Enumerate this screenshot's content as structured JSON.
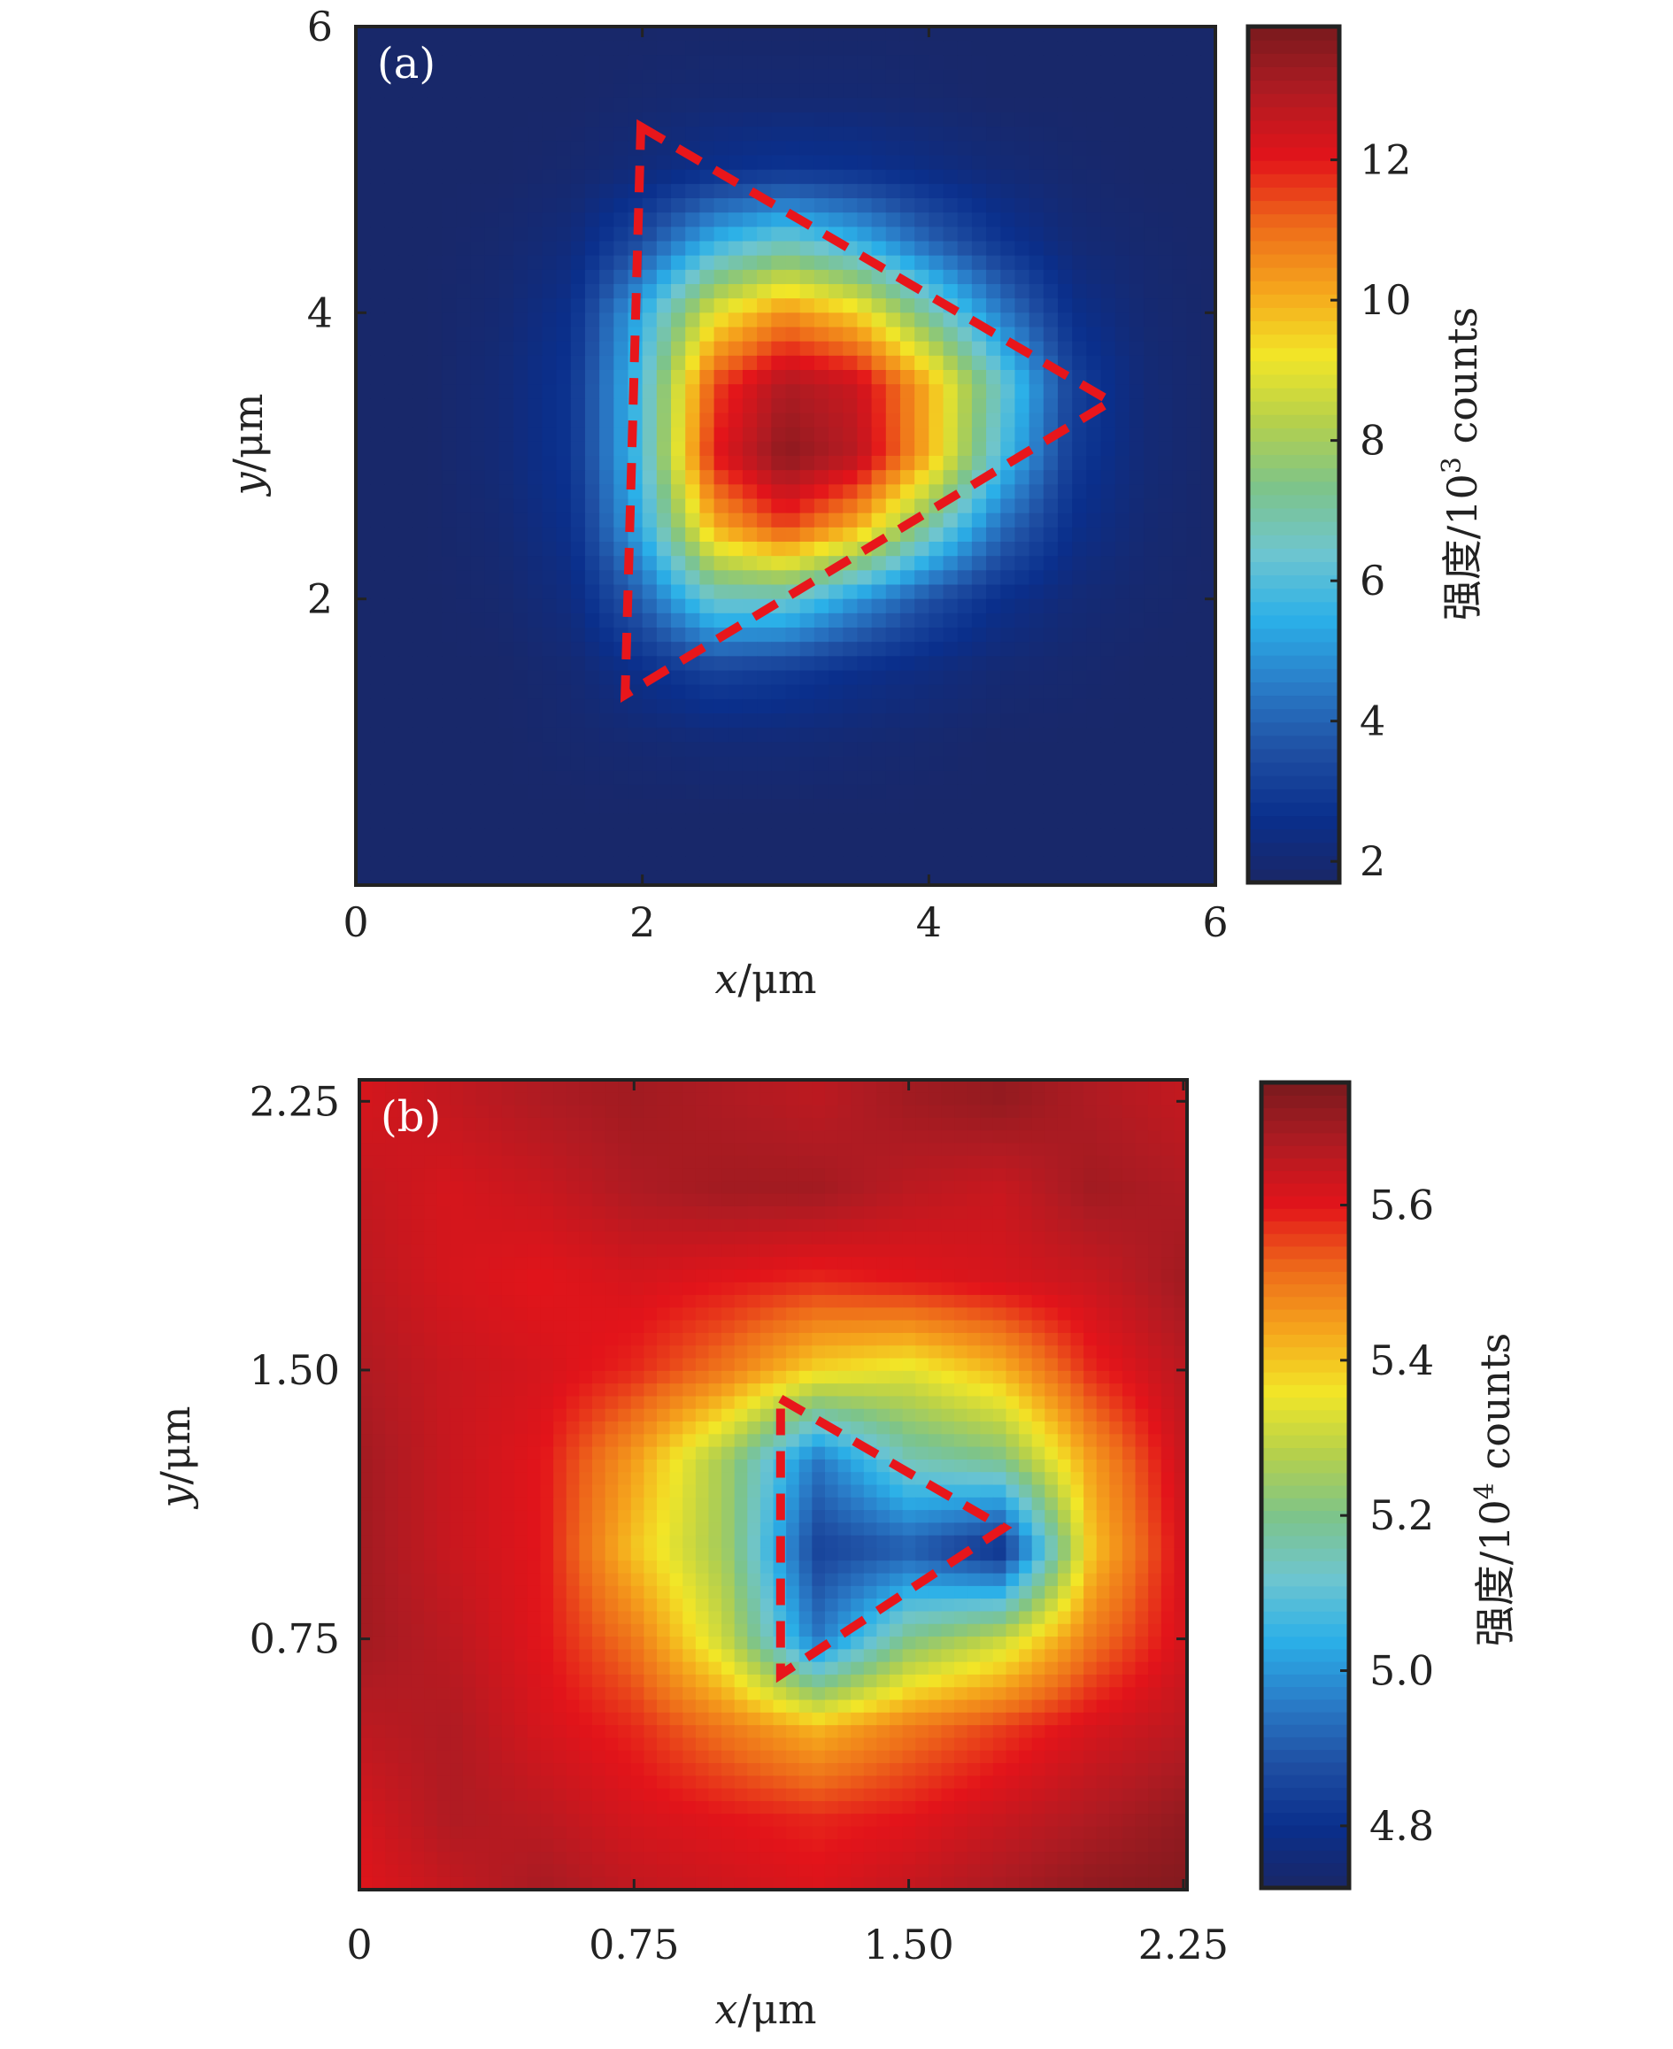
{
  "colormap": [
    "#1a2766",
    "#0a2f8c",
    "#1f4fa3",
    "#2a7cc8",
    "#2bb0e8",
    "#6ec5cf",
    "#7dc48a",
    "#b5d04c",
    "#f2e627",
    "#f5a51c",
    "#ee6a1a",
    "#e3141a",
    "#b01b22",
    "#7a1a1e"
  ],
  "dash_color": "#e8161b",
  "chart_data": [
    {
      "type": "heatmap",
      "panel_label": "(a)",
      "xlabel_var": "x",
      "xlabel_unit": "/μm",
      "ylabel_var": "y",
      "ylabel_unit": "/μm",
      "xlim": [
        0,
        6
      ],
      "ylim": [
        0,
        6
      ],
      "xticks": [
        {
          "v": 0,
          "label": "0"
        },
        {
          "v": 2,
          "label": "2"
        },
        {
          "v": 4,
          "label": "4"
        },
        {
          "v": 6,
          "label": "6"
        }
      ],
      "yticks": [
        {
          "v": 2,
          "label": "2"
        },
        {
          "v": 4,
          "label": "4"
        },
        {
          "v": 6,
          "label": "6"
        }
      ],
      "colorbar": {
        "label_prefix": "强度/10",
        "exponent": "3",
        "label_suffix": " counts",
        "range": [
          1.7,
          13.9
        ],
        "ticks": [
          {
            "v": 2,
            "label": "2"
          },
          {
            "v": 4,
            "label": "4"
          },
          {
            "v": 6,
            "label": "6"
          },
          {
            "v": 8,
            "label": "8"
          },
          {
            "v": 10,
            "label": "10"
          },
          {
            "v": 12,
            "label": "12"
          }
        ]
      },
      "grid_x": [
        0,
        0.5,
        1,
        1.5,
        2,
        2.5,
        3,
        3.5,
        4,
        4.5,
        5,
        5.5,
        6
      ],
      "grid_y_top_to_bottom": [
        6,
        5.5,
        5,
        4.5,
        4,
        3.5,
        3,
        2.5,
        2,
        1.5,
        1,
        0.5,
        0
      ],
      "values": [
        [
          1.8,
          1.8,
          1.8,
          1.8,
          1.8,
          1.8,
          1.8,
          1.8,
          1.8,
          1.8,
          1.8,
          1.8,
          1.8
        ],
        [
          1.8,
          1.8,
          1.8,
          1.8,
          1.9,
          2.0,
          2.0,
          2.0,
          1.9,
          1.8,
          1.8,
          1.8,
          1.8
        ],
        [
          1.8,
          1.8,
          1.8,
          1.9,
          2.2,
          2.6,
          2.8,
          2.7,
          2.4,
          2.1,
          1.9,
          1.8,
          1.8
        ],
        [
          1.8,
          1.8,
          1.9,
          2.2,
          3.5,
          5.5,
          6.5,
          5.5,
          4.0,
          2.8,
          2.1,
          1.9,
          1.8
        ],
        [
          1.8,
          1.8,
          2.0,
          2.6,
          5.5,
          9.0,
          10.5,
          9.5,
          7.0,
          4.5,
          2.6,
          2.0,
          1.8
        ],
        [
          1.8,
          1.8,
          2.1,
          2.8,
          6.0,
          11.5,
          13.0,
          12.5,
          10.0,
          6.5,
          3.2,
          2.1,
          1.8
        ],
        [
          1.8,
          1.8,
          2.1,
          2.8,
          6.0,
          12.0,
          13.6,
          12.8,
          10.0,
          6.0,
          3.0,
          2.1,
          1.8
        ],
        [
          1.8,
          1.8,
          2.0,
          2.6,
          5.5,
          10.0,
          11.5,
          10.0,
          7.0,
          4.2,
          2.6,
          2.0,
          1.8
        ],
        [
          1.8,
          1.8,
          1.9,
          2.3,
          4.0,
          6.5,
          6.5,
          5.0,
          3.6,
          2.6,
          2.1,
          1.9,
          1.8
        ],
        [
          1.8,
          1.8,
          1.8,
          2.0,
          2.6,
          3.2,
          3.0,
          2.6,
          2.3,
          2.0,
          1.9,
          1.8,
          1.8
        ],
        [
          1.8,
          1.8,
          1.8,
          1.9,
          2.0,
          2.1,
          2.1,
          2.0,
          1.9,
          1.8,
          1.8,
          1.8,
          1.8
        ],
        [
          1.8,
          1.8,
          1.8,
          1.8,
          1.8,
          1.8,
          1.8,
          1.8,
          1.8,
          1.8,
          1.8,
          1.8,
          1.8
        ],
        [
          1.8,
          1.8,
          1.8,
          1.8,
          1.8,
          1.8,
          1.8,
          1.8,
          1.8,
          1.8,
          1.8,
          1.8,
          1.8
        ]
      ],
      "triangle": [
        [
          1.99,
          5.3
        ],
        [
          5.27,
          3.38
        ],
        [
          1.88,
          1.33
        ]
      ]
    },
    {
      "type": "heatmap",
      "panel_label": "(b)",
      "xlabel_var": "x",
      "xlabel_unit": "/μm",
      "ylabel_var": "y",
      "ylabel_unit": "/μm",
      "xlim": [
        0,
        2.26
      ],
      "ylim": [
        0.05,
        2.31
      ],
      "xticks": [
        {
          "v": 0,
          "label": "0"
        },
        {
          "v": 0.75,
          "label": "0.75"
        },
        {
          "v": 1.5,
          "label": "1.50"
        },
        {
          "v": 2.25,
          "label": "2.25"
        }
      ],
      "yticks": [
        {
          "v": 0.75,
          "label": "0.75"
        },
        {
          "v": 1.5,
          "label": "1.50"
        },
        {
          "v": 2.25,
          "label": "2.25"
        }
      ],
      "colorbar": {
        "label_prefix": "强度/10",
        "exponent": "4",
        "label_suffix": " counts",
        "range": [
          4.72,
          5.758
        ],
        "ticks": [
          {
            "v": 4.8,
            "label": "4.8"
          },
          {
            "v": 5.0,
            "label": "5.0"
          },
          {
            "v": 5.2,
            "label": "5.2"
          },
          {
            "v": 5.4,
            "label": "5.4"
          },
          {
            "v": 5.6,
            "label": "5.6"
          }
        ]
      },
      "grid_x": [
        0,
        0.25,
        0.5,
        0.75,
        1,
        1.25,
        1.5,
        1.75,
        2,
        2.25
      ],
      "grid_y_top_to_bottom": [
        2.25,
        2,
        1.75,
        1.5,
        1.25,
        1,
        0.75,
        0.5,
        0.25,
        0
      ],
      "values": [
        [
          5.62,
          5.65,
          5.68,
          5.7,
          5.68,
          5.66,
          5.7,
          5.72,
          5.68,
          5.65
        ],
        [
          5.65,
          5.62,
          5.64,
          5.68,
          5.7,
          5.7,
          5.66,
          5.64,
          5.7,
          5.68
        ],
        [
          5.66,
          5.62,
          5.6,
          5.62,
          5.6,
          5.58,
          5.6,
          5.62,
          5.64,
          5.7
        ],
        [
          5.68,
          5.64,
          5.62,
          5.58,
          5.5,
          5.38,
          5.34,
          5.42,
          5.58,
          5.66
        ],
        [
          5.7,
          5.64,
          5.6,
          5.45,
          5.25,
          4.95,
          5.15,
          5.2,
          5.45,
          5.64
        ],
        [
          5.7,
          5.64,
          5.6,
          5.4,
          5.25,
          4.85,
          4.9,
          4.8,
          5.4,
          5.62
        ],
        [
          5.7,
          5.66,
          5.6,
          5.5,
          5.3,
          4.95,
          5.2,
          5.3,
          5.5,
          5.62
        ],
        [
          5.66,
          5.68,
          5.62,
          5.58,
          5.5,
          5.42,
          5.5,
          5.56,
          5.62,
          5.66
        ],
        [
          5.62,
          5.68,
          5.66,
          5.62,
          5.6,
          5.58,
          5.6,
          5.64,
          5.68,
          5.72
        ],
        [
          5.6,
          5.64,
          5.7,
          5.66,
          5.64,
          5.62,
          5.66,
          5.7,
          5.74,
          5.75
        ]
      ],
      "triangle": [
        [
          1.15,
          1.42
        ],
        [
          1.76,
          1.06
        ],
        [
          1.15,
          0.65
        ]
      ]
    }
  ]
}
